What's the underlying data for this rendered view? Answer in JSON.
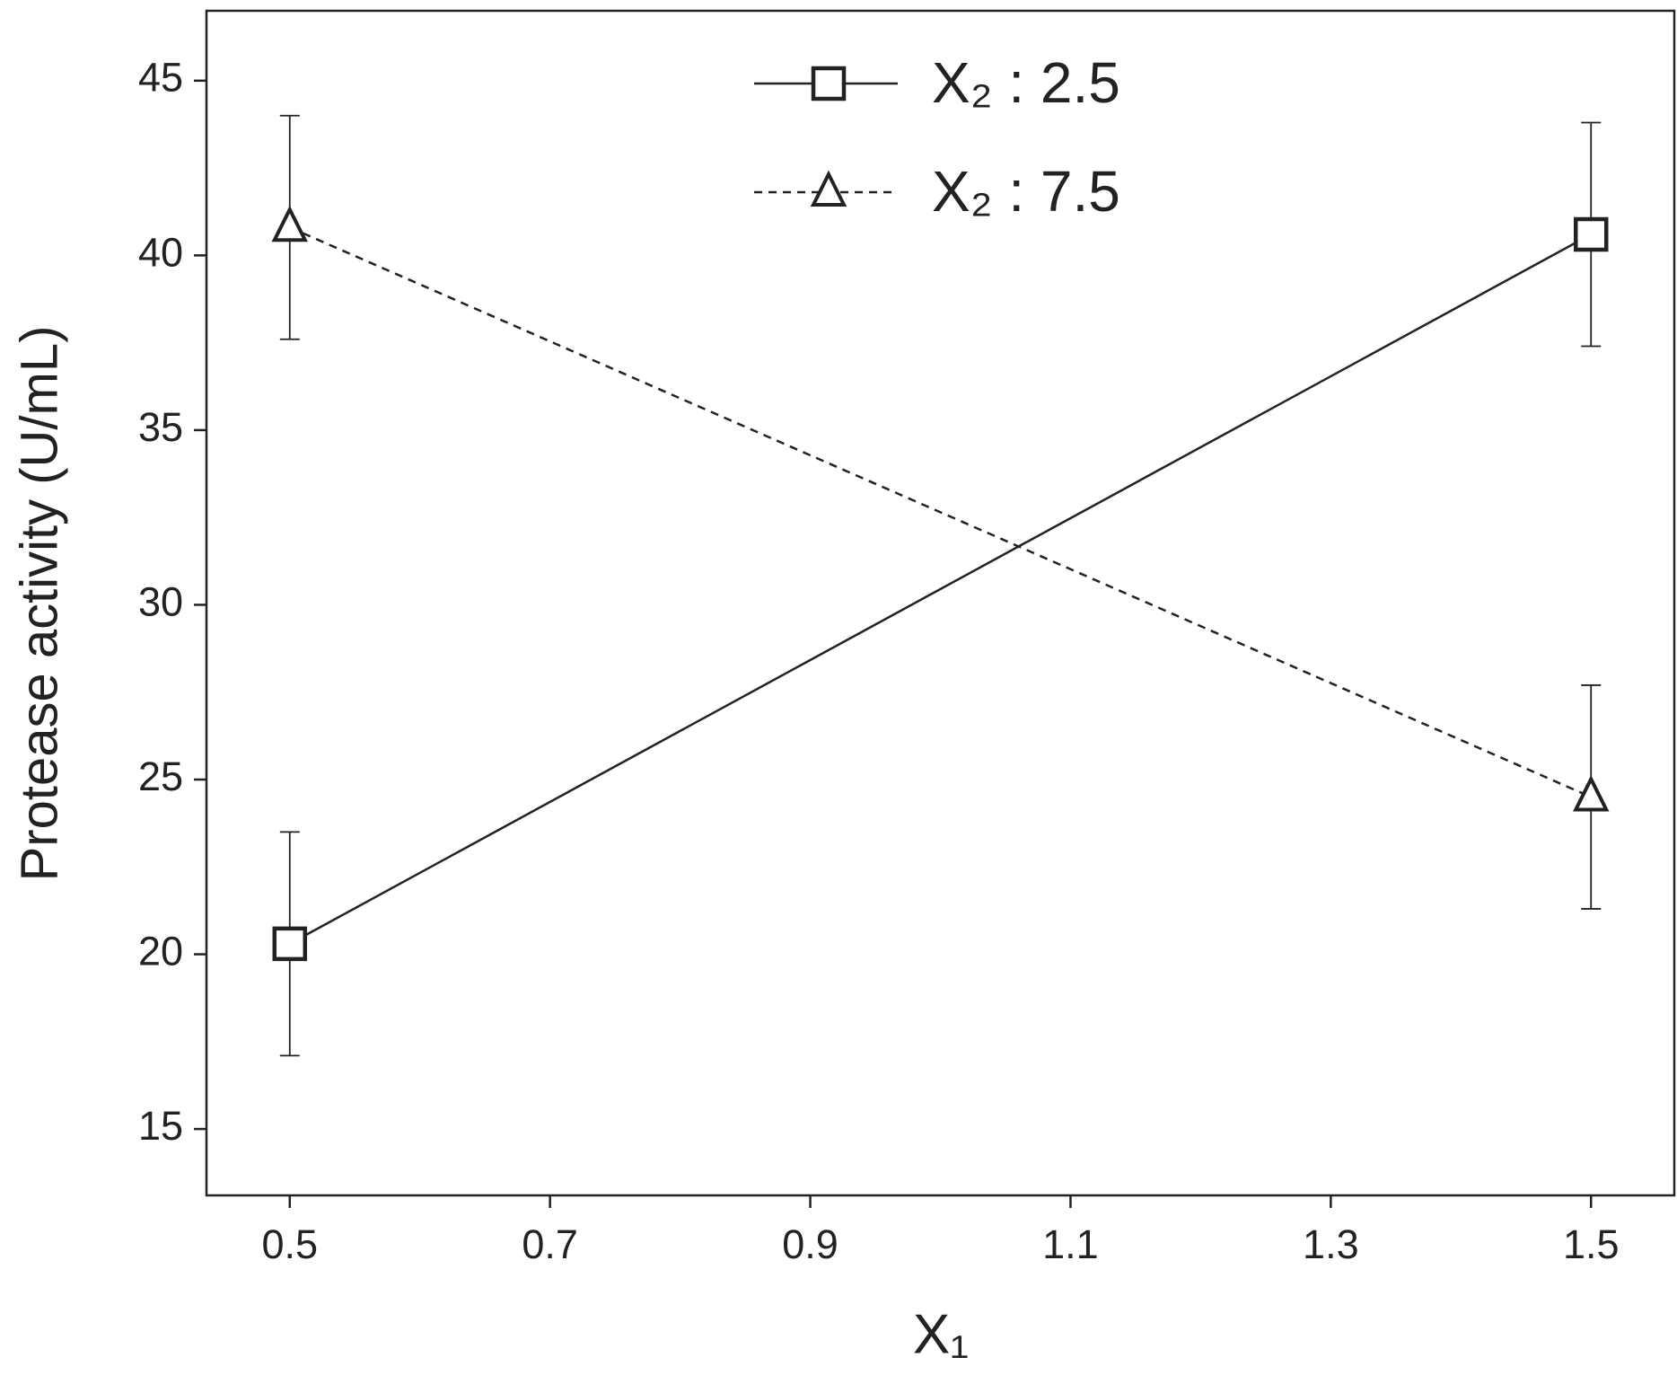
{
  "chart_data": {
    "type": "line",
    "x_label": "X₁",
    "y_label": "Protease activity (U/mL)",
    "x": [
      0.5,
      1.5
    ],
    "series": [
      {
        "name": "X₂ : 2.5",
        "color": "#222222",
        "linestyle": "solid",
        "marker": "square",
        "values": [
          20.3,
          40.6
        ],
        "errors": [
          3.2,
          3.2
        ]
      },
      {
        "name": "X₂ : 7.5",
        "color": "#222222",
        "linestyle": "dashed",
        "marker": "triangle",
        "values": [
          40.8,
          24.5
        ],
        "errors": [
          3.2,
          3.2
        ]
      }
    ],
    "xlim": [
      0.436,
      1.564
    ],
    "xticks": [
      0.5,
      0.7,
      0.9,
      1.1,
      1.3,
      1.5
    ],
    "ylim": [
      13.1,
      47
    ],
    "yticks": [
      15,
      20,
      25,
      30,
      35,
      40,
      45
    ],
    "grid": false,
    "legend": "top"
  }
}
